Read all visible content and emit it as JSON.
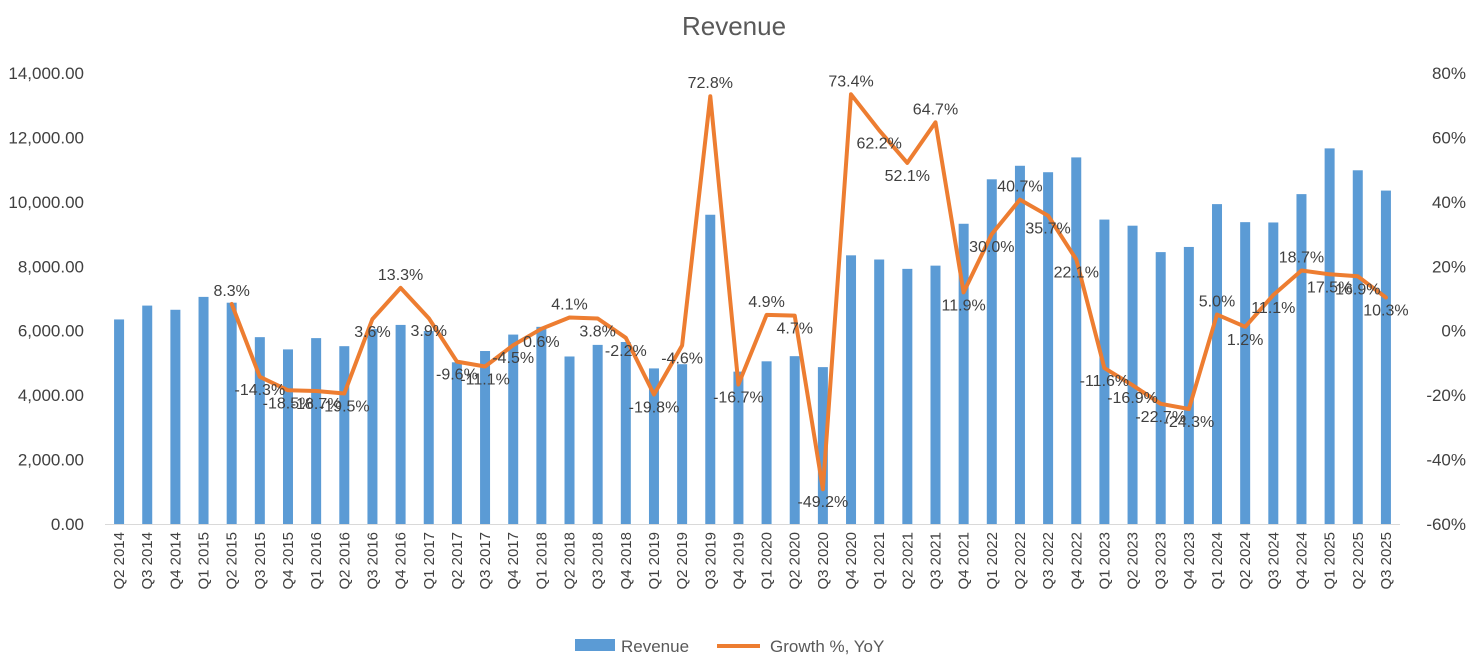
{
  "chart_data": {
    "type": "bar",
    "title": "Revenue",
    "categories": [
      "Q2 2014",
      "Q3 2014",
      "Q4 2014",
      "Q1 2015",
      "Q2 2015",
      "Q3 2015",
      "Q4 2015",
      "Q1 2016",
      "Q2 2016",
      "Q3 2016",
      "Q4 2016",
      "Q1 2017",
      "Q2 2017",
      "Q3 2017",
      "Q4 2017",
      "Q1 2018",
      "Q2 2018",
      "Q3 2018",
      "Q4 2018",
      "Q1 2019",
      "Q2 2019",
      "Q3 2019",
      "Q4 2019",
      "Q1 2020",
      "Q2 2020",
      "Q3 2020",
      "Q4 2020",
      "Q1 2021",
      "Q2 2021",
      "Q3 2021",
      "Q4 2021",
      "Q1 2022",
      "Q2 2022",
      "Q3 2022",
      "Q4 2022",
      "Q1 2023",
      "Q2 2023",
      "Q3 2023",
      "Q4 2023",
      "Q1 2024",
      "Q2 2024",
      "Q3 2024",
      "Q4 2024",
      "Q1 2025",
      "Q2 2025",
      "Q3 2025"
    ],
    "series": [
      {
        "name": "Revenue",
        "type": "bar",
        "axis": "left",
        "color": "#5B9BD5",
        "values": [
          6350,
          6780,
          6650,
          7050,
          6870,
          5800,
          5420,
          5770,
          5520,
          6050,
          6180,
          5990,
          5020,
          5370,
          5880,
          6120,
          5200,
          5560,
          5650,
          4830,
          4960,
          9600,
          4730,
          5050,
          5210,
          4870,
          8340,
          8210,
          7920,
          8020,
          9320,
          10700,
          11120,
          10920,
          11380,
          9450,
          9260,
          8440,
          8600,
          9930,
          9370,
          9360,
          10240,
          11660,
          10980,
          10350
        ]
      },
      {
        "name": "Growth %, YoY",
        "type": "line",
        "axis": "right",
        "color": "#ED7D31",
        "values": [
          null,
          null,
          null,
          null,
          8.3,
          -14.3,
          -18.5,
          -18.7,
          -19.5,
          3.6,
          13.3,
          3.9,
          -9.6,
          -11.1,
          -4.5,
          0.6,
          4.1,
          3.8,
          -2.2,
          -19.8,
          -4.6,
          72.8,
          -16.7,
          4.9,
          4.7,
          -49.2,
          73.4,
          62.2,
          52.1,
          64.7,
          11.9,
          30.0,
          40.7,
          35.7,
          22.1,
          -11.6,
          -16.9,
          -22.7,
          -24.3,
          5.0,
          1.2,
          11.1,
          18.7,
          17.5,
          16.9,
          10.3
        ],
        "labels": [
          "",
          "",
          "",
          "",
          "8.3%",
          "-14.3%",
          "-18.5%",
          "-18.7%",
          "-19.5%",
          "3.6%",
          "13.3%",
          "3.9%",
          "-9.6%",
          "-11.1%",
          "-4.5%",
          "0.6%",
          "4.1%",
          "3.8%",
          "-2.2%",
          "-19.8%",
          "-4.6%",
          "72.8%",
          "-16.7%",
          "4.9%",
          "4.7%",
          "-49.2%",
          "73.4%",
          "62.2%",
          "52.1%",
          "64.7%",
          "11.9%",
          "30.0%",
          "40.7%",
          "35.7%",
          "22.1%",
          "-11.6%",
          "-16.9%",
          "-22.7%",
          "-24.3%",
          "5.0%",
          "1.2%",
          "11.1%",
          "18.7%",
          "17.5%",
          "16.9%",
          "10.3%"
        ]
      }
    ],
    "y_left": {
      "min": 0,
      "max": 14000,
      "ticks": [
        0,
        2000,
        4000,
        6000,
        8000,
        10000,
        12000,
        14000
      ],
      "tick_labels": [
        "0.00",
        "2,000.00",
        "4,000.00",
        "6,000.00",
        "8,000.00",
        "10,000.00",
        "12,000.00",
        "14,000.00"
      ]
    },
    "y_right": {
      "min": -60,
      "max": 80,
      "ticks": [
        -60,
        -40,
        -20,
        0,
        20,
        40,
        60,
        80
      ],
      "tick_labels": [
        "-60%",
        "-40%",
        "-20%",
        "0%",
        "20%",
        "40%",
        "60%",
        "80%"
      ]
    },
    "grid": false,
    "legend": {
      "position": "bottom",
      "entries": [
        "Revenue",
        "Growth %, YoY"
      ]
    }
  }
}
